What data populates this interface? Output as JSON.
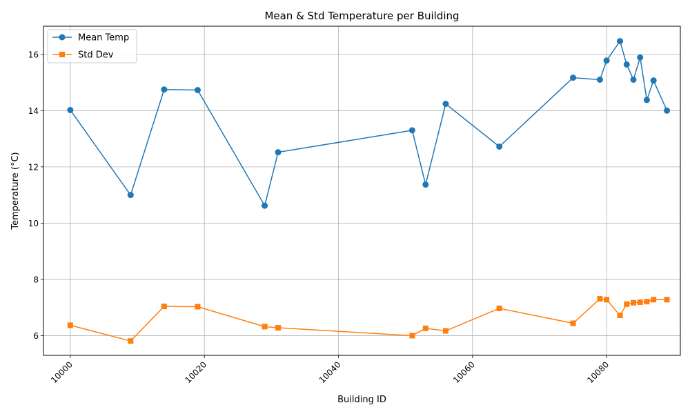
{
  "chart_data": {
    "type": "line",
    "title": "Mean & Std Temperature per Building",
    "xlabel": "Building ID",
    "ylabel": "Temperature (°C)",
    "xlim": [
      9996,
      10091
    ],
    "ylim": [
      5.3,
      17.0
    ],
    "xticks": [
      10000,
      10020,
      10040,
      10060,
      10080
    ],
    "yticks": [
      6,
      8,
      10,
      12,
      14,
      16
    ],
    "xtick_rotation": 45,
    "grid": true,
    "legend_position": "upper-left",
    "x": [
      10000,
      10009,
      10014,
      10019,
      10029,
      10031,
      10051,
      10053,
      10056,
      10064,
      10075,
      10079,
      10080,
      10082,
      10083,
      10084,
      10085,
      10086,
      10087,
      10089
    ],
    "series": [
      {
        "name": "Mean Temp",
        "color": "#1f77b4",
        "marker": "circle",
        "values": [
          14.02,
          11.0,
          14.75,
          14.73,
          10.62,
          12.52,
          13.3,
          11.37,
          14.24,
          12.72,
          15.17,
          15.1,
          15.78,
          16.47,
          15.64,
          15.1,
          15.89,
          14.38,
          15.07,
          14.0
        ]
      },
      {
        "name": "Std Dev",
        "color": "#ff7f0e",
        "marker": "square",
        "values": [
          6.37,
          5.81,
          7.04,
          7.03,
          6.32,
          6.28,
          6.0,
          6.26,
          6.17,
          6.97,
          6.44,
          7.31,
          7.28,
          6.72,
          7.12,
          7.17,
          7.19,
          7.21,
          7.28,
          7.28
        ]
      }
    ]
  }
}
